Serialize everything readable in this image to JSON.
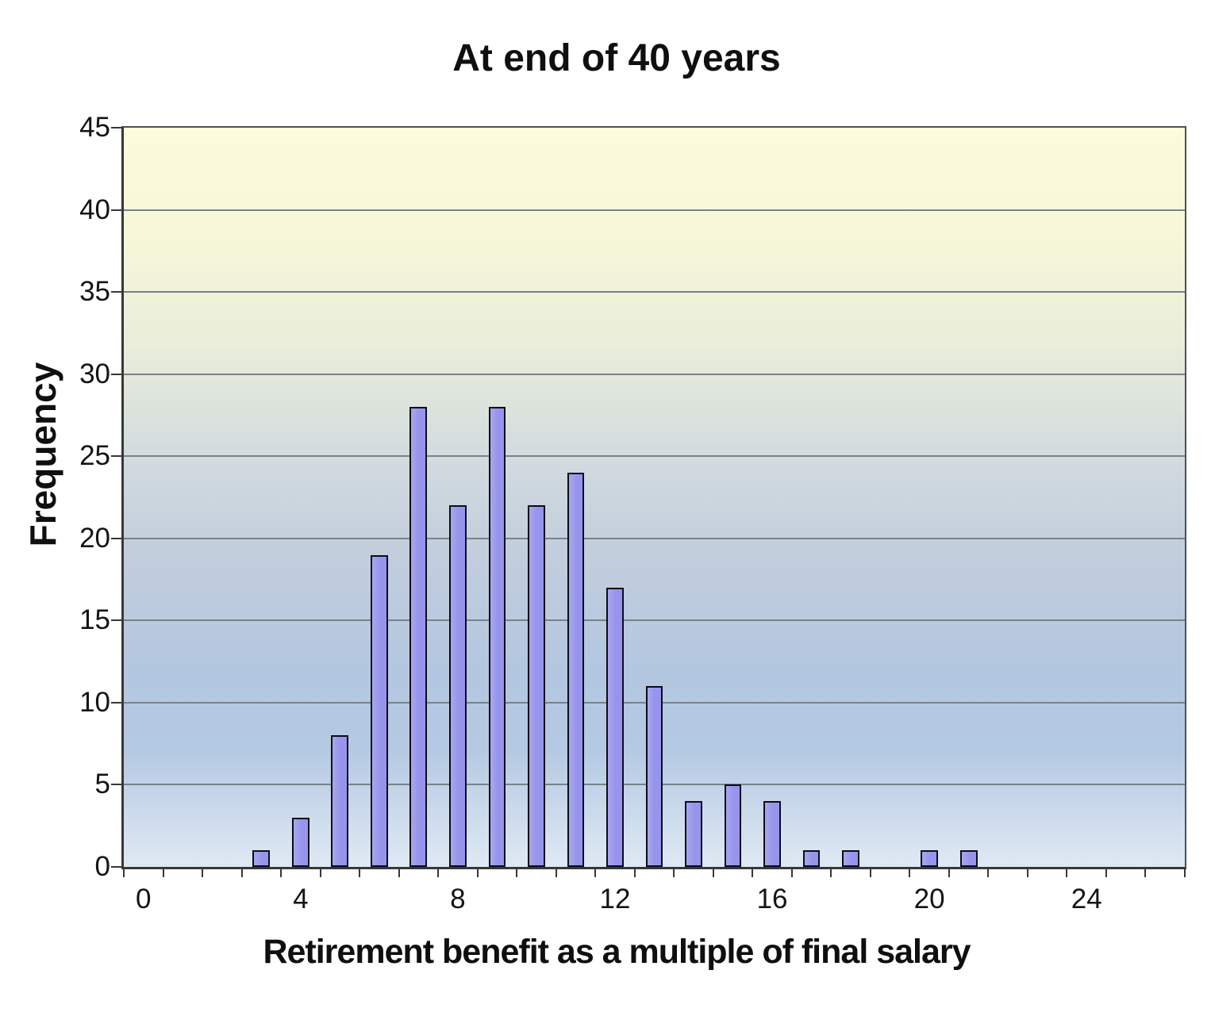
{
  "chart_data": {
    "type": "bar",
    "title": "At end of 40 years",
    "xlabel": "Retirement benefit as a multiple of final salary",
    "ylabel": "Frequency",
    "ylim": [
      0,
      45
    ],
    "ytick_step": 5,
    "grid": "horizontal",
    "legend": "none",
    "n_categories": 27,
    "bar_width_frac": 0.44,
    "categories": [
      0,
      1,
      2,
      3,
      4,
      5,
      6,
      7,
      8,
      9,
      10,
      11,
      12,
      13,
      14,
      15,
      16,
      17,
      18,
      19,
      20,
      21,
      22,
      23,
      24,
      25,
      26
    ],
    "frequencies": [
      0,
      0,
      0,
      1,
      3,
      8,
      19,
      28,
      22,
      28,
      22,
      24,
      17,
      11,
      4,
      5,
      4,
      1,
      1,
      0,
      1,
      1,
      0,
      0,
      0,
      0,
      0
    ],
    "xtick_labels": [
      {
        "at": 0,
        "text": "0"
      },
      {
        "at": 4,
        "text": "4"
      },
      {
        "at": 8,
        "text": "8"
      },
      {
        "at": 12,
        "text": "12"
      },
      {
        "at": 16,
        "text": "16"
      },
      {
        "at": 20,
        "text": "20"
      },
      {
        "at": 24,
        "text": "24"
      }
    ],
    "colors": {
      "bar_fill": "#9795eb",
      "bar_fill_light": "#a8a6f1",
      "bar_border": "#0c0c18",
      "grid": "#77828b",
      "axis": "#383838",
      "text": "#111111",
      "plot_gradient_top": "#fcfcda",
      "plot_gradient_mid": "#b3c7e0",
      "plot_gradient_bottom": "#dfe9f4"
    }
  }
}
